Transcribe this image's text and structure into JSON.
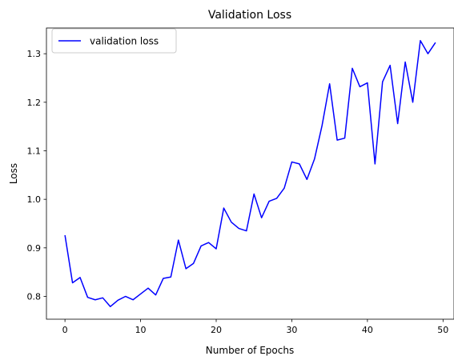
{
  "chart_data": {
    "type": "line",
    "title": "Validation Loss",
    "xlabel": "Number of Epochs",
    "ylabel": "Loss",
    "xlim": [
      -2.45,
      51.45
    ],
    "ylim": [
      0.753,
      1.353
    ],
    "xticks": [
      0,
      10,
      20,
      30,
      40,
      50
    ],
    "yticks": [
      0.8,
      0.9,
      1.0,
      1.1,
      1.2,
      1.3
    ],
    "xtick_labels": [
      "0",
      "10",
      "20",
      "30",
      "40",
      "50"
    ],
    "ytick_labels": [
      "0.8",
      "0.9",
      "1.0",
      "1.1",
      "1.2",
      "1.3"
    ],
    "grid": false,
    "legend_position": "top-left",
    "series": [
      {
        "name": "validation loss",
        "color": "#0000ff",
        "x": [
          0,
          1,
          2,
          3,
          4,
          5,
          6,
          7,
          8,
          9,
          10,
          11,
          12,
          13,
          14,
          15,
          16,
          17,
          18,
          19,
          20,
          21,
          22,
          23,
          24,
          25,
          26,
          27,
          28,
          29,
          30,
          31,
          32,
          33,
          34,
          35,
          36,
          37,
          38,
          39,
          40,
          41,
          42,
          43,
          44,
          45,
          46,
          47,
          48,
          49
        ],
        "y": [
          0.926,
          0.828,
          0.839,
          0.798,
          0.793,
          0.797,
          0.779,
          0.792,
          0.8,
          0.793,
          0.805,
          0.817,
          0.803,
          0.837,
          0.84,
          0.916,
          0.857,
          0.868,
          0.904,
          0.911,
          0.898,
          0.982,
          0.953,
          0.94,
          0.935,
          1.011,
          0.962,
          0.996,
          1.002,
          1.023,
          1.077,
          1.073,
          1.041,
          1.083,
          1.152,
          1.238,
          1.122,
          1.126,
          1.27,
          1.232,
          1.24,
          1.073,
          1.242,
          1.276,
          1.156,
          1.283,
          1.2,
          1.327,
          1.3,
          1.323
        ]
      }
    ]
  }
}
